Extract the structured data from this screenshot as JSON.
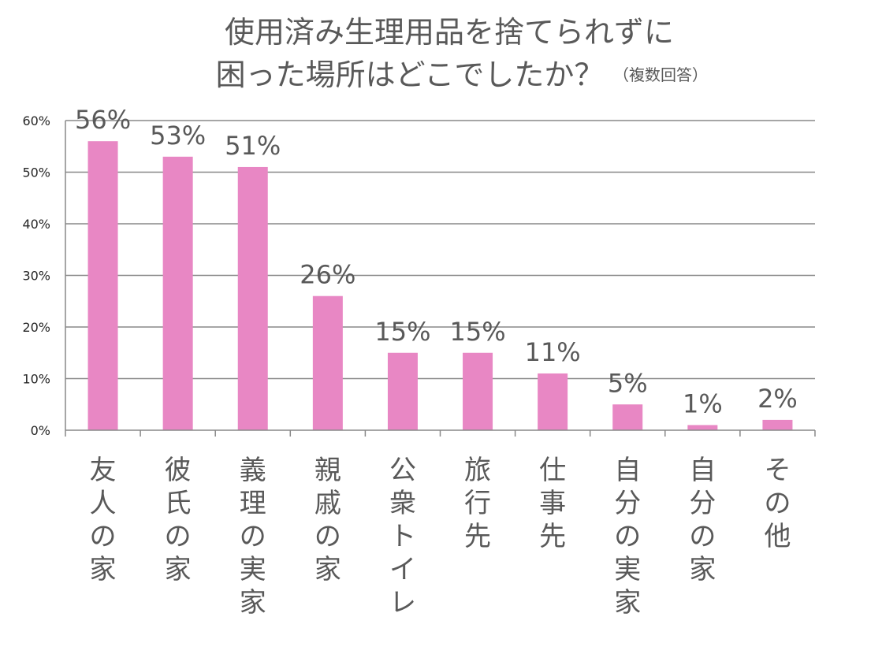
{
  "chart_data": {
    "type": "bar",
    "title": "使用済み生理用品を捨てられずに",
    "title_line2": "困った場所はどこでしたか？",
    "title_note": "（複数回答）",
    "categories": [
      "友人の家",
      "彼氏の家",
      "義理の実家",
      "親戚の家",
      "公衆トイレ",
      "旅行先",
      "仕事先",
      "自分の実家",
      "自分の家",
      "その他"
    ],
    "values": [
      56,
      53,
      51,
      26,
      15,
      15,
      11,
      5,
      1,
      2
    ],
    "data_labels": [
      "56%",
      "53%",
      "51%",
      "26%",
      "15%",
      "15%",
      "11%",
      "5%",
      "1%",
      "2%"
    ],
    "y_ticks": [
      "0%",
      "10%",
      "20%",
      "30%",
      "40%",
      "50%",
      "60%"
    ],
    "ylim": [
      0,
      60
    ],
    "grid": true,
    "legend": "none",
    "colors": {
      "bar": "#E887C4",
      "grid": "#888888",
      "text": "#595959"
    }
  }
}
